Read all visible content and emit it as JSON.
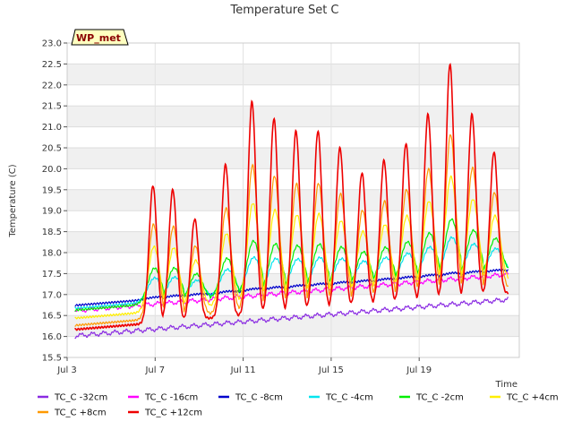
{
  "chart_data": {
    "type": "line",
    "title": "Temperature Set C",
    "xlabel": "Time",
    "ylabel": "Temperature (C)",
    "badge": "WP_met",
    "x_range": [
      "Jul 3",
      "Jul 21"
    ],
    "ylim": [
      15.5,
      23.0
    ],
    "yticks": [
      "15.5",
      "16.0",
      "16.5",
      "17.0",
      "17.5",
      "18.0",
      "18.5",
      "19.0",
      "19.5",
      "20.0",
      "20.5",
      "21.0",
      "21.5",
      "22.0",
      "22.5",
      "23.0"
    ],
    "xticks": [
      "Jul 3",
      "Jul 7",
      "Jul 11",
      "Jul 15",
      "Jul 19"
    ],
    "grid": true,
    "legend_position": "bottom",
    "peak_days": [
      3.9,
      4.8,
      5.8,
      7.2,
      8.4,
      9.4,
      10.4,
      11.4,
      12.4,
      13.4,
      14.4,
      15.4,
      16.4,
      17.4,
      18.4,
      19.4
    ],
    "peaks_plus12": [
      19.6,
      19.5,
      18.8,
      20.1,
      21.6,
      21.2,
      20.9,
      20.9,
      20.5,
      19.9,
      20.2,
      20.6,
      21.3,
      22.5,
      21.3,
      20.4
    ],
    "series": [
      {
        "name": "TC_C -32cm",
        "color": "#8a2be2",
        "start": 16.0,
        "end": 16.9,
        "amp": 0.0
      },
      {
        "name": "TC_C -16cm",
        "color": "#ff00ff",
        "start": 16.6,
        "end": 17.5,
        "amp": 0.0
      },
      {
        "name": "TC_C -8cm",
        "color": "#0000cc",
        "start": 16.75,
        "end": 17.6,
        "amp": 0.05
      },
      {
        "name": "TC_C -4cm",
        "color": "#00e5ee",
        "start": 16.8,
        "end": 17.7,
        "amp": 0.32
      },
      {
        "name": "TC_C -2cm",
        "color": "#00ee00",
        "start": 16.8,
        "end": 17.7,
        "amp": 0.42
      },
      {
        "name": "TC_C +4cm",
        "color": "#ffee00",
        "start": 16.7,
        "end": 17.6,
        "amp": 0.62
      },
      {
        "name": "TC_C +8cm",
        "color": "#ff9900",
        "start": 16.6,
        "end": 17.5,
        "amp": 0.78
      },
      {
        "name": "TC_C +12cm",
        "color": "#ee0000",
        "start": 16.6,
        "end": 17.5,
        "amp": 1.0
      }
    ]
  }
}
